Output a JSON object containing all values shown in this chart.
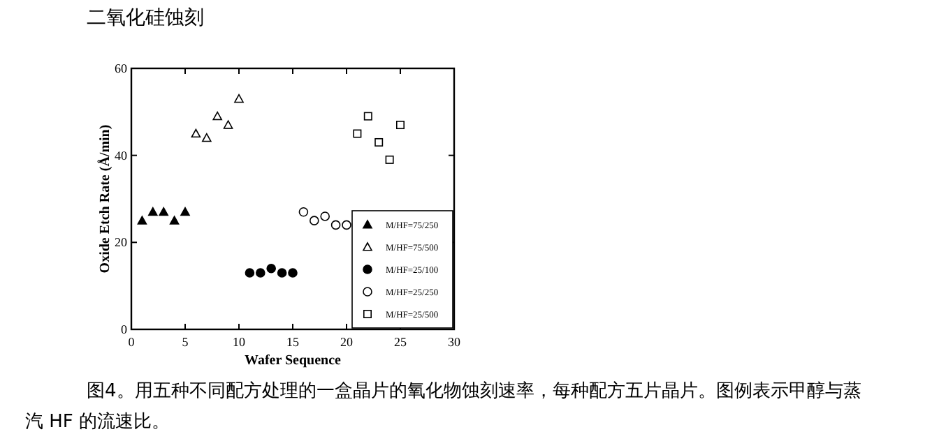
{
  "chart_data": {
    "type": "scatter",
    "title": "二氧化硅蚀刻",
    "xlabel": "Wafer Sequence",
    "ylabel": "Oxide Etch Rate (Å/min)",
    "annotations": [
      "图4。用五种不同配方处理的一盒晶片的氧化物蚀刻速率，每种配方五片晶片。图例表示甲醇与蒸汽 HF 的流速比。"
    ],
    "xlim": [
      0,
      30
    ],
    "xticks": [
      0,
      5,
      10,
      15,
      20,
      25,
      30
    ],
    "ylim": [
      0,
      60
    ],
    "yticks": [
      0,
      20,
      40,
      60
    ],
    "grid": false,
    "legend": "bottom right",
    "series": [
      {
        "name": "M/HF=75/250",
        "color": "#000000",
        "marker": "triangle",
        "x": [
          1,
          2,
          3,
          4,
          5
        ],
        "values": [
          25,
          27,
          27,
          25,
          27
        ]
      },
      {
        "name": "M/HF=75/500",
        "color": "#ffffff",
        "marker": "triangle",
        "x": [
          6,
          7,
          8,
          9,
          10
        ],
        "values": [
          45,
          44,
          49,
          47,
          53
        ]
      },
      {
        "name": "M/HF=25/100",
        "color": "#000000",
        "marker": "circle",
        "x": [
          11,
          12,
          13,
          14,
          15
        ],
        "values": [
          13,
          13,
          14,
          13,
          13
        ]
      },
      {
        "name": "M/HF=25/250",
        "color": "#ffffff",
        "marker": "circle",
        "x": [
          16,
          17,
          18,
          19,
          20
        ],
        "values": [
          27,
          25,
          26,
          24,
          24
        ]
      },
      {
        "name": "M/HF=25/500",
        "color": "#ffffff",
        "marker": "square",
        "x": [
          21,
          22,
          23,
          24,
          25
        ],
        "values": [
          45,
          49,
          43,
          39,
          47
        ]
      }
    ]
  }
}
